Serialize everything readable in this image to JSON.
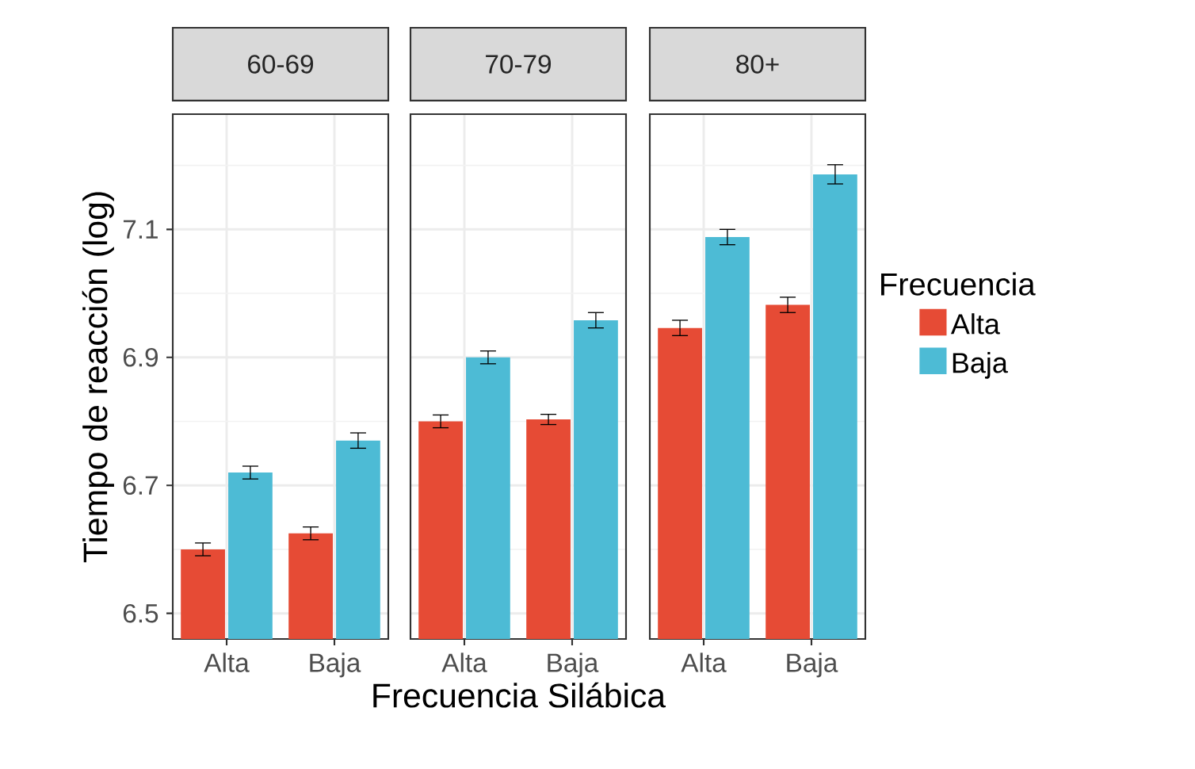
{
  "chart_data": [
    {
      "type": "bar",
      "title": "60-69",
      "ylabel": "Tiempo de reacción (log)",
      "categories": [
        "Alta",
        "Baja"
      ],
      "series": [
        {
          "color": "#e64b35",
          "values": [
            6.6,
            6.625
          ],
          "errors": [
            0.01,
            0.01
          ]
        },
        {
          "color": "#4dbbd5",
          "values": [
            6.72,
            6.77
          ],
          "errors": [
            0.01,
            0.012
          ]
        }
      ],
      "ylim": [
        6.46,
        7.28
      ],
      "yticks": [
        6.5,
        6.7,
        6.9,
        7.1
      ],
      "grid": true,
      "legend": false
    },
    {
      "type": "bar",
      "title": "70-79",
      "xlabel": "Frecuencia Silábica",
      "categories": [
        "Alta",
        "Baja"
      ],
      "series": [
        {
          "color": "#e64b35",
          "values": [
            6.8,
            6.803
          ],
          "errors": [
            0.01,
            0.008
          ]
        },
        {
          "color": "#4dbbd5",
          "values": [
            6.9,
            6.958
          ],
          "errors": [
            0.01,
            0.012
          ]
        }
      ],
      "ylim": [
        6.46,
        7.28
      ],
      "yticks": [
        6.5,
        6.7,
        6.9,
        7.1
      ],
      "grid": true,
      "legend": false,
      "tick_labels": "x"
    },
    {
      "type": "bar",
      "title": "80+",
      "legend_title": "Frecuencia",
      "categories": [
        "Alta",
        "Baja"
      ],
      "series": [
        {
          "name": "Alta",
          "color": "#e64b35",
          "values": [
            6.946,
            6.982
          ],
          "errors": [
            0.012,
            0.012
          ]
        },
        {
          "name": "Baja",
          "color": "#4dbbd5",
          "values": [
            7.088,
            7.186
          ],
          "errors": [
            0.012,
            0.015
          ]
        }
      ],
      "ylim": [
        6.46,
        7.28
      ],
      "yticks": [
        6.5,
        6.7,
        6.9,
        7.1
      ],
      "grid": true,
      "legend": "right",
      "tick_labels": "x"
    }
  ]
}
